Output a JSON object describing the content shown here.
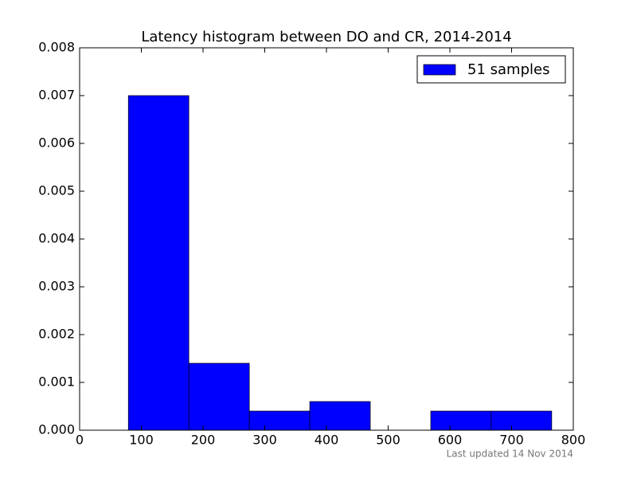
{
  "chart_data": {
    "type": "histogram",
    "title": "Latency histogram between DO and CR, 2014-2014",
    "bins": [
      79,
      177,
      275,
      373,
      471,
      569,
      667,
      765
    ],
    "series": [
      {
        "name": "51 samples",
        "color": "#0000ff",
        "values": [
          0.007,
          0.0014,
          0.0004,
          0.0006,
          0,
          0.0004,
          0.0004
        ]
      }
    ],
    "xlim": [
      0,
      800
    ],
    "xticks": [
      0,
      100,
      200,
      300,
      400,
      500,
      600,
      700,
      800
    ],
    "ylim": [
      0,
      0.008
    ],
    "yticks": [
      {
        "value": 0,
        "label": "0.000"
      },
      {
        "value": 0.001,
        "label": "0.001"
      },
      {
        "value": 0.002,
        "label": "0.002"
      },
      {
        "value": 0.003,
        "label": "0.003"
      },
      {
        "value": 0.004,
        "label": "0.004"
      },
      {
        "value": 0.005,
        "label": "0.005"
      },
      {
        "value": 0.006,
        "label": "0.006"
      },
      {
        "value": 0.007,
        "label": "0.007"
      },
      {
        "value": 0.008,
        "label": "0.008"
      }
    ],
    "legend": "upper right",
    "footnote": "Last updated 14 Nov 2014"
  }
}
